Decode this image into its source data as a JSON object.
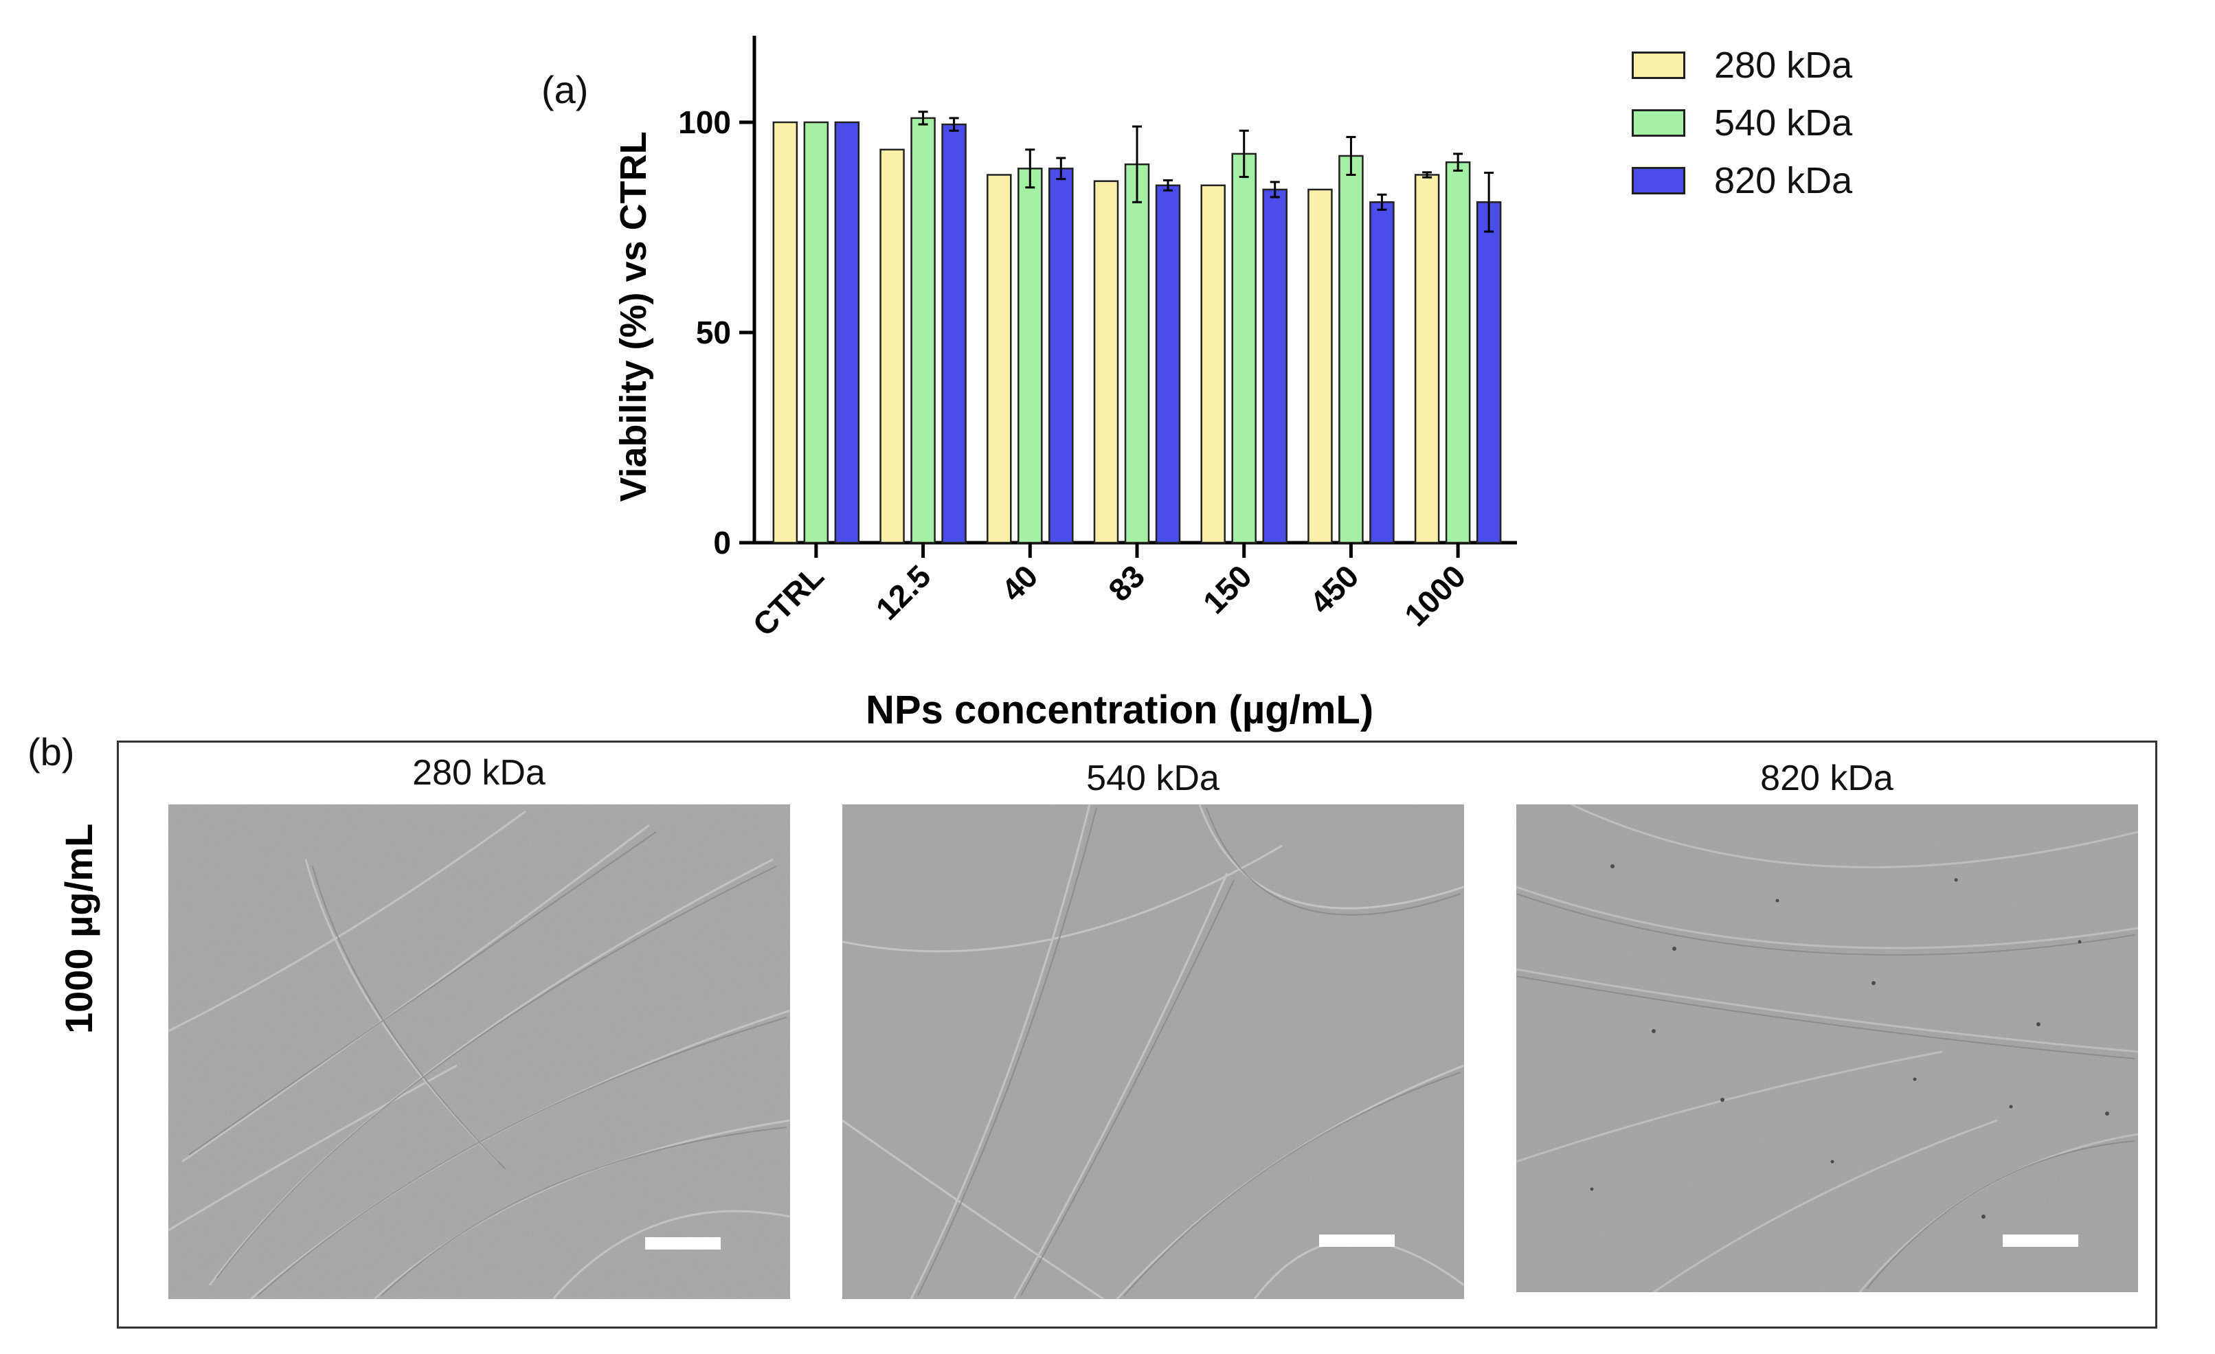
{
  "panel_labels": {
    "a": "(a)",
    "b": "(b)"
  },
  "legend": [
    {
      "label": "280 kDa",
      "color": "#fbf0a8"
    },
    {
      "label": "540 kDa",
      "color": "#a4f0a4"
    },
    {
      "label": "820 kDa",
      "color": "#4b4de8"
    }
  ],
  "chart_data": {
    "type": "bar",
    "title": "",
    "xlabel": "NPs concentration (µg/mL)",
    "ylabel": "Viability (%) vs CTRL",
    "ylim": [
      0,
      120
    ],
    "yticks": [
      0,
      50,
      100
    ],
    "categories": [
      "CTRL",
      "12.5",
      "40",
      "83",
      "150",
      "450",
      "1000"
    ],
    "series": [
      {
        "name": "280 kDa",
        "color": "#fbf0a8",
        "values": [
          100,
          93.5,
          87.5,
          86,
          85,
          84,
          87.5
        ],
        "errors": [
          0,
          0,
          0,
          0,
          0,
          0,
          0.6
        ]
      },
      {
        "name": "540 kDa",
        "color": "#a4f0a4",
        "values": [
          100,
          101,
          89,
          90,
          92.5,
          92,
          90.5
        ],
        "errors": [
          0,
          1.5,
          4.5,
          9,
          5.5,
          4.5,
          2
        ]
      },
      {
        "name": "820 kDa",
        "color": "#4b4de8",
        "values": [
          100,
          99.5,
          89,
          85,
          84,
          81,
          81
        ],
        "errors": [
          0,
          1.5,
          2.5,
          1.2,
          1.8,
          1.8,
          7
        ]
      }
    ]
  },
  "micrographs": {
    "row_label": "1000 µg/mL",
    "panels": [
      {
        "title": "280 kDa"
      },
      {
        "title": "540 kDa"
      },
      {
        "title": "820 kDa"
      }
    ]
  }
}
